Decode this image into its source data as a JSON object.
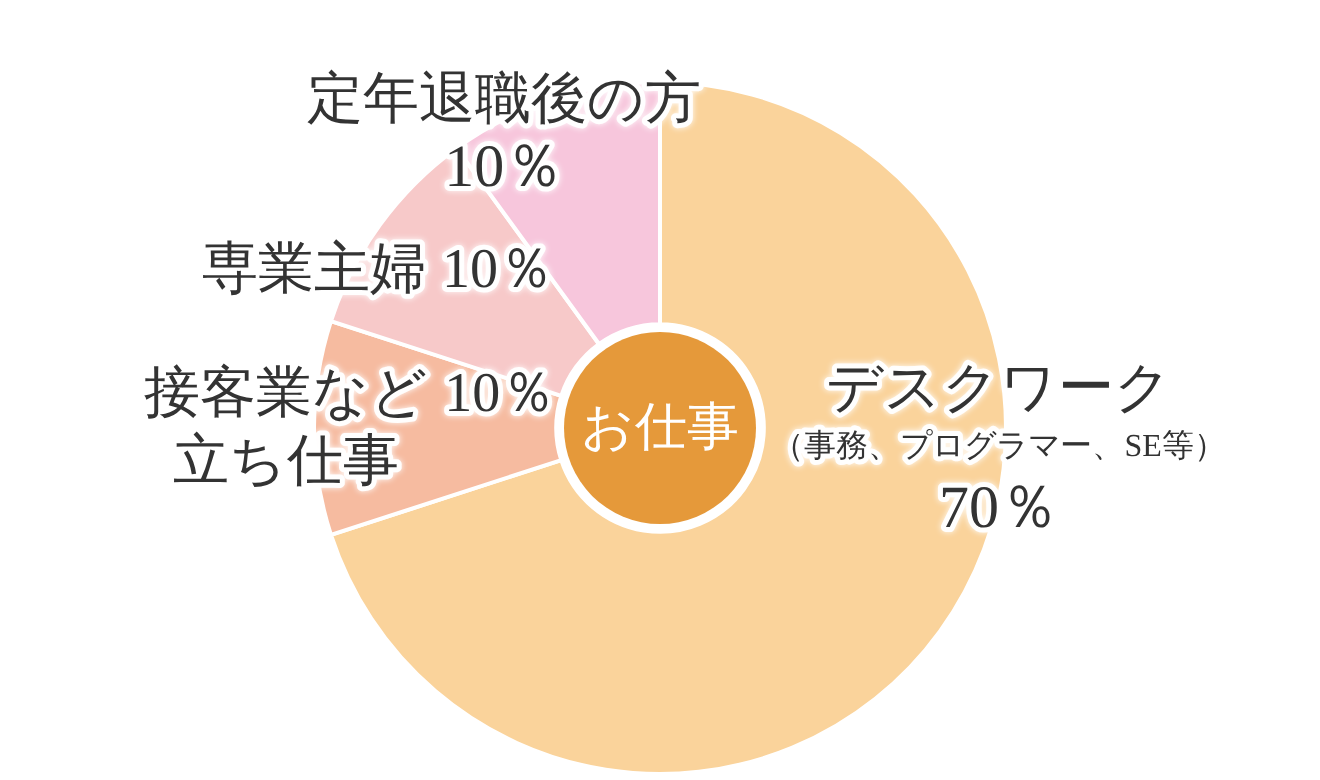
{
  "chart_data": {
    "type": "donut",
    "title": "お仕事",
    "categories": [
      "デスクワーク",
      "接客業など立ち仕事",
      "専業主婦",
      "定年退職後の方"
    ],
    "values": [
      70,
      10,
      10,
      10
    ],
    "value_labels": [
      "70％",
      "10％",
      "10％",
      "10％"
    ],
    "colors": [
      "#fad39b",
      "#f6bba0",
      "#f7c9c9",
      "#f7c6dc"
    ],
    "annotations": [
      "（事務、プログラマー、SE等）"
    ],
    "legend": false
  }
}
